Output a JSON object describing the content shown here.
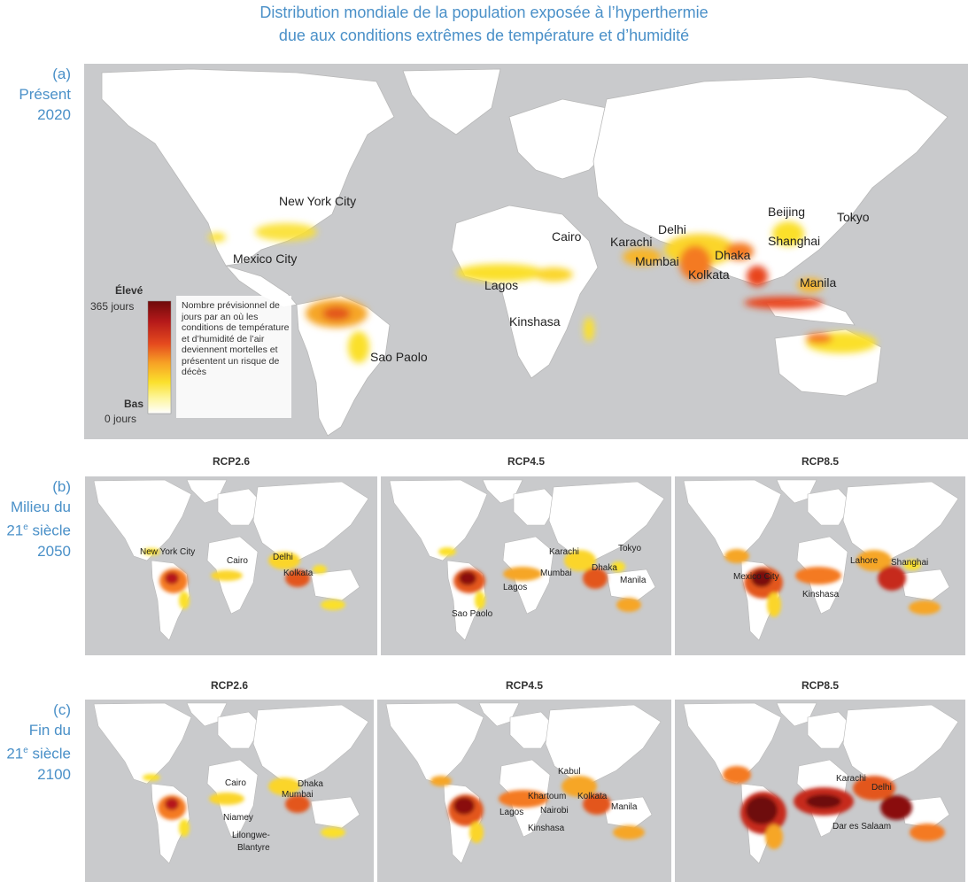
{
  "title": {
    "line1": "Distribution mondiale de la population exposée à l’hyperthermie",
    "line2": "due aux conditions extrêmes de température  et d’humidité"
  },
  "rows": {
    "a": {
      "letter": "(a)",
      "line1": "Présent",
      "line2": "2020"
    },
    "b": {
      "letter": "(b)",
      "line1": "Milieu du",
      "line2_prefix": "21",
      "line2_sup": "e",
      "line2_suffix": " siècle",
      "line3": "2050"
    },
    "c": {
      "letter": "(c)",
      "line1": "Fin du",
      "line2_prefix": "21",
      "line2_sup": "e",
      "line2_suffix": " siècle",
      "line3": "2100"
    }
  },
  "scenarios": [
    "RCP2.6",
    "RCP4.5",
    "RCP8.5"
  ],
  "legend": {
    "high_label": "Élevé",
    "high_value": "365 jours",
    "low_label": "Bas",
    "low_value": "0 jours",
    "description": "Nombre prévisionnel de jours par an où les conditions de température et d’humidité de l’air deviennent mortelles et présentent un risque de décès",
    "colors": [
      "#7a0c0c",
      "#b5191a",
      "#e03a1e",
      "#f47a22",
      "#fbd52a",
      "#fdf26a",
      "#ffffff"
    ]
  },
  "maps": {
    "present": {
      "cities": [
        "New York City",
        "Mexico City",
        "Sao Paolo",
        "Lagos",
        "Kinshasa",
        "Cairo",
        "Karachi",
        "Delhi",
        "Mumbai",
        "Kolkata",
        "Dhaka",
        "Beijing",
        "Shanghai",
        "Tokyo",
        "Manila"
      ]
    },
    "b_rcp26": {
      "cities": [
        "New York City",
        "Cairo",
        "Delhi",
        "Kolkata"
      ]
    },
    "b_rcp45": {
      "cities": [
        "Karachi",
        "Tokyo",
        "Mumbai",
        "Dhaka",
        "Lagos",
        "Manila",
        "Sao Paolo"
      ]
    },
    "b_rcp85": {
      "cities": [
        "Lahore",
        "Shanghai",
        "Mexico City",
        "Kinshasa"
      ]
    },
    "c_rcp26": {
      "cities": [
        "Cairo",
        "Dhaka",
        "Mumbai",
        "Niamey",
        "Lilongwe-",
        "Blantyre"
      ]
    },
    "c_rcp45": {
      "cities": [
        "Kabul",
        "Khartoum",
        "Kolkata",
        "Lagos",
        "Nairobi",
        "Manila",
        "Kinshasa"
      ]
    },
    "c_rcp85": {
      "cities": [
        "Karachi",
        "Delhi",
        "Dar es Salaam"
      ]
    }
  },
  "colors": {
    "title": "#4a90c8",
    "ocean": "#c9cacc",
    "land": "#ffffff"
  }
}
